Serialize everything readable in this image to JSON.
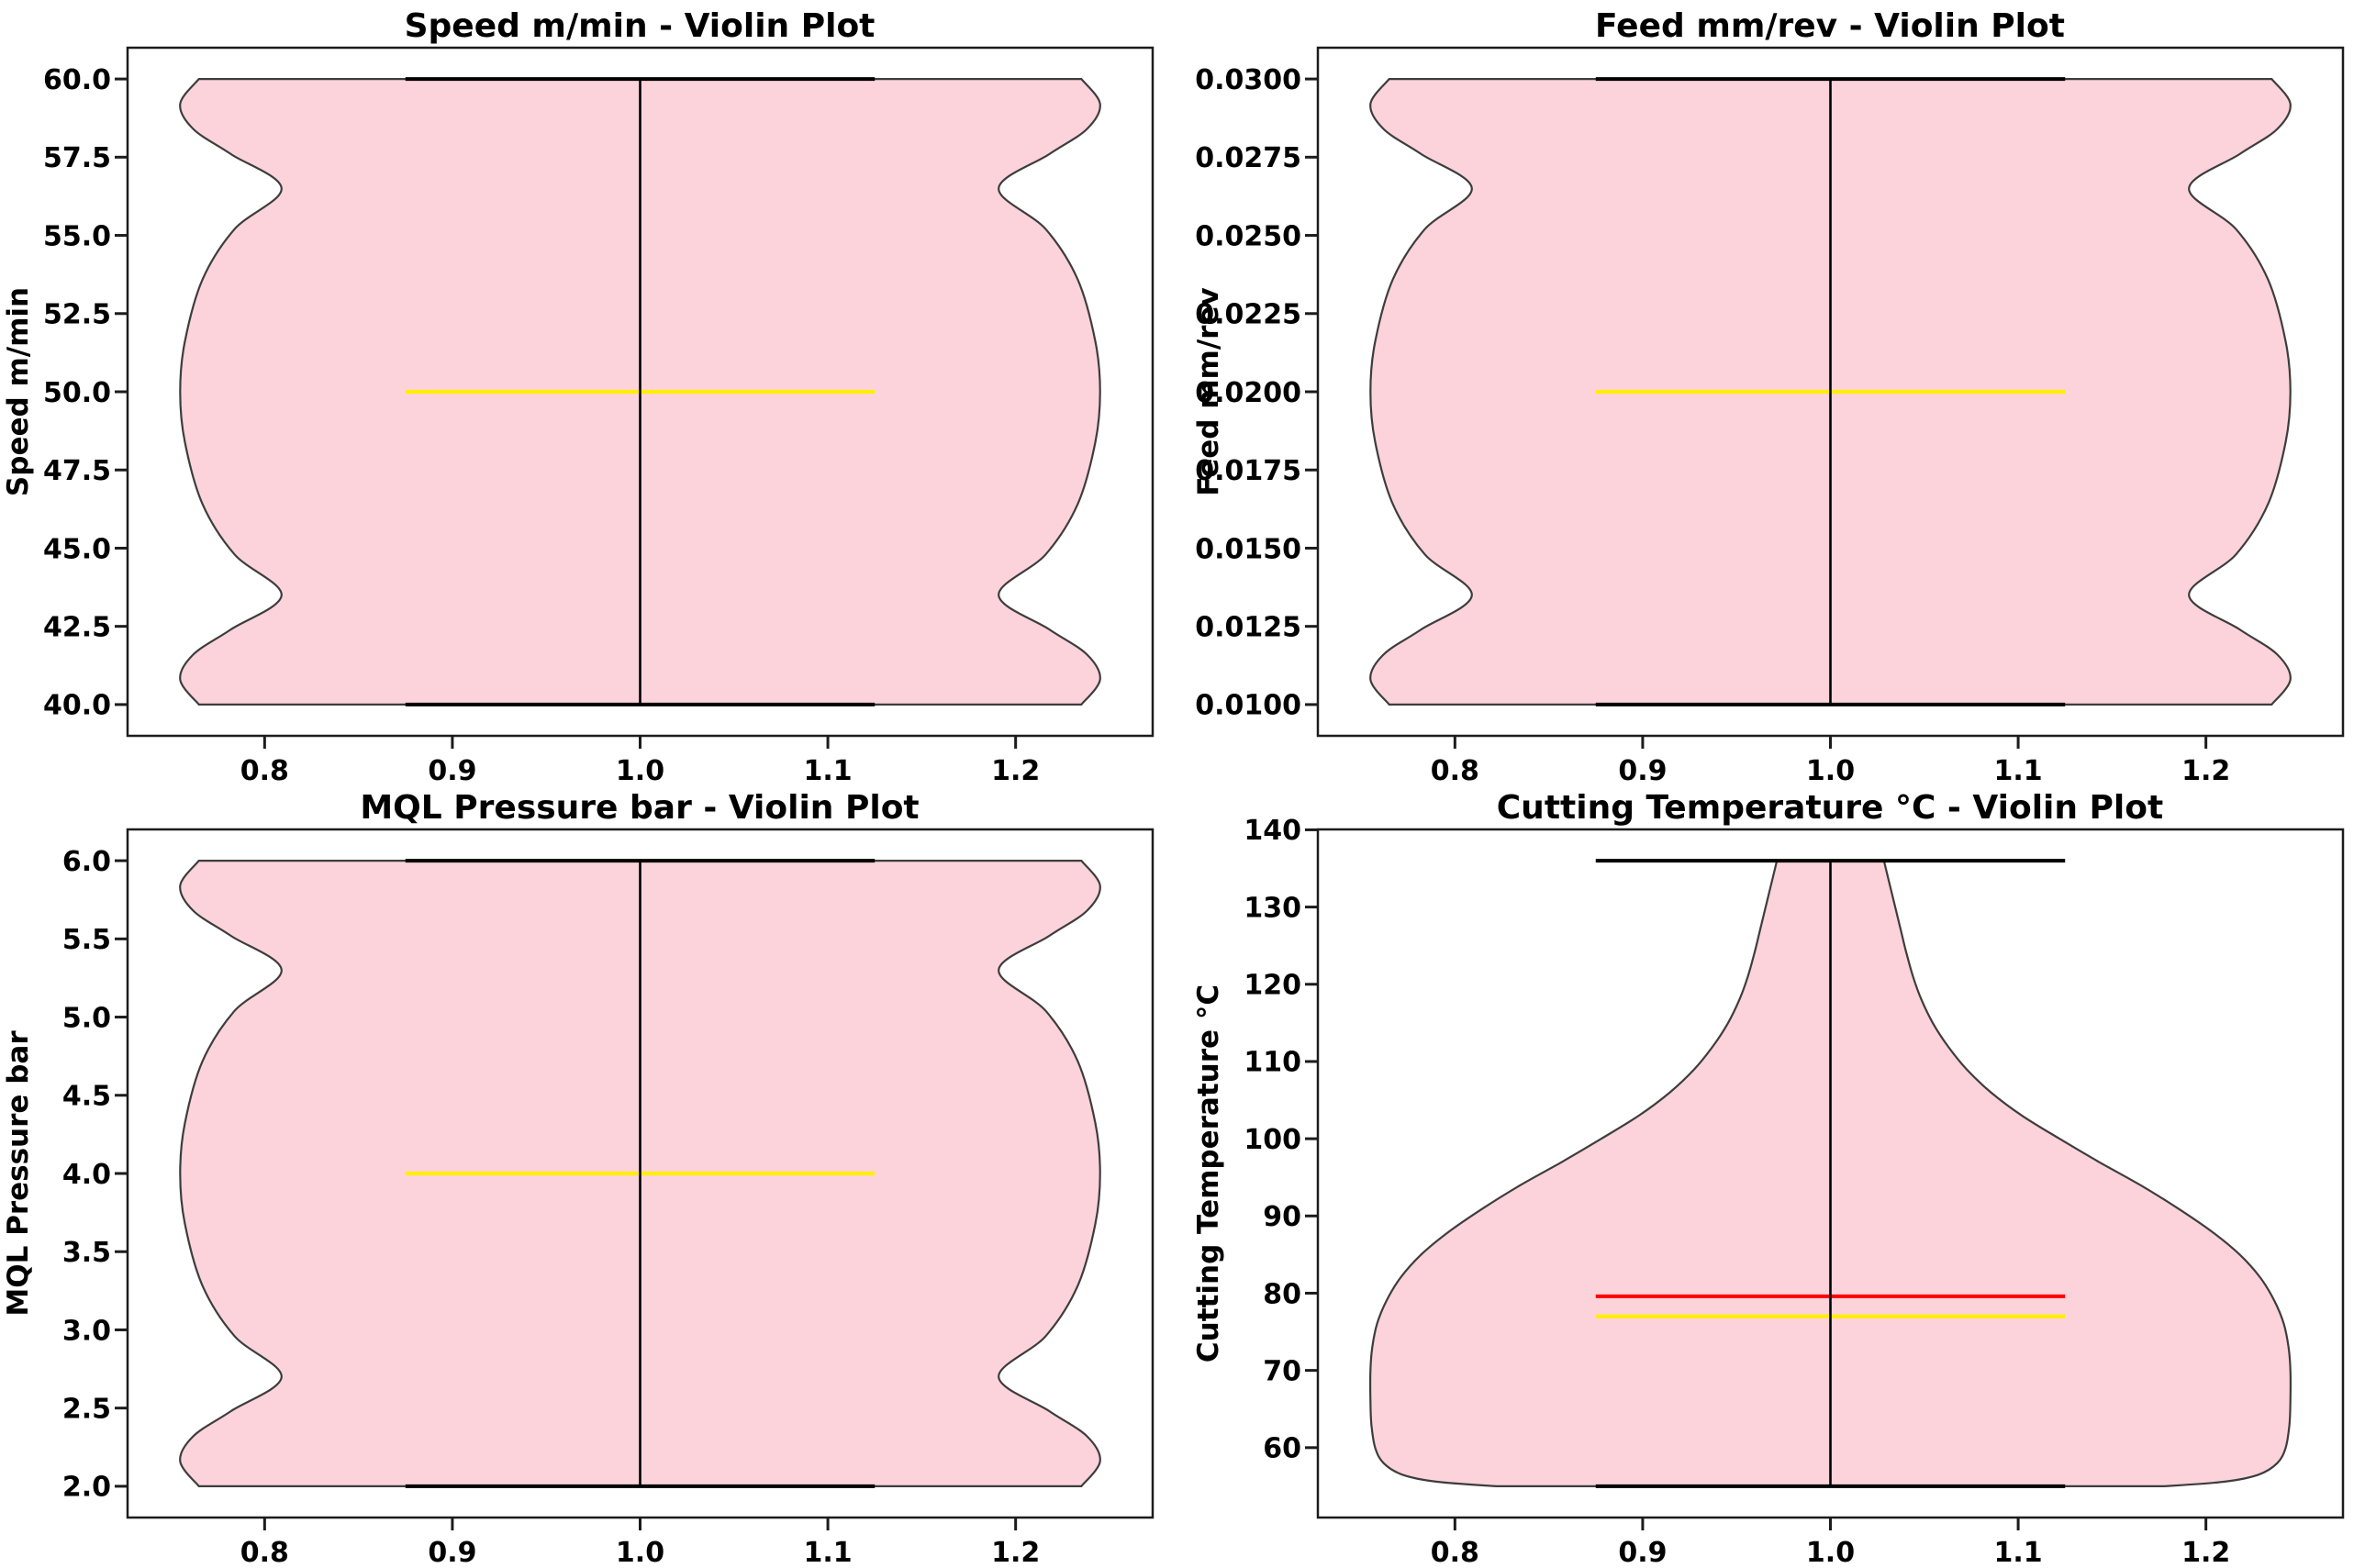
{
  "figure": {
    "background": "#ffffff",
    "style": {
      "violin_fill": "#fdd3db",
      "violin_edge": "#3d3d3d",
      "median_color": "#ffee00",
      "mean_color": "#ff0000",
      "line_color": "#000000",
      "axis_color": "#1c1c1c"
    }
  },
  "chart_data": [
    {
      "type": "violin",
      "title": "Speed m/min - Violin Plot",
      "ylabel": "Speed m/min",
      "xlabel": "",
      "legend": "none",
      "grid": false,
      "center_position": 1.0,
      "xlim": [
        0.727,
        1.273
      ],
      "ylim": [
        39.0,
        61.0
      ],
      "xticks": [
        {
          "v": 0.8,
          "label": "0.8"
        },
        {
          "v": 0.9,
          "label": "0.9"
        },
        {
          "v": 1.0,
          "label": "1.0"
        },
        {
          "v": 1.1,
          "label": "1.1"
        },
        {
          "v": 1.2,
          "label": "1.2"
        }
      ],
      "yticks": [
        {
          "v": 40,
          "label": "40.0"
        },
        {
          "v": 42.5,
          "label": "42.5"
        },
        {
          "v": 45,
          "label": "45.0"
        },
        {
          "v": 47.5,
          "label": "47.5"
        },
        {
          "v": 50,
          "label": "50.0"
        },
        {
          "v": 52.5,
          "label": "52.5"
        },
        {
          "v": 55,
          "label": "55.0"
        },
        {
          "v": 57.5,
          "label": "57.5"
        },
        {
          "v": 60,
          "label": "60.0"
        }
      ],
      "min": 40,
      "max": 60,
      "median": 50,
      "mean": null,
      "modes": [
        40,
        50,
        60
      ],
      "cap_halfwidth": 0.125,
      "profile": [
        [
          40,
          0.235
        ],
        [
          40.8,
          0.245
        ],
        [
          41.6,
          0.238
        ],
        [
          42.4,
          0.218
        ],
        [
          43.5,
          0.191
        ],
        [
          44.8,
          0.216
        ],
        [
          46.4,
          0.233
        ],
        [
          48.4,
          0.2425
        ],
        [
          50,
          0.245
        ],
        [
          51.6,
          0.2425
        ],
        [
          53.6,
          0.233
        ],
        [
          55.2,
          0.216
        ],
        [
          56.5,
          0.191
        ],
        [
          57.6,
          0.218
        ],
        [
          58.4,
          0.238
        ],
        [
          59.2,
          0.245
        ],
        [
          60,
          0.235
        ]
      ]
    },
    {
      "type": "violin",
      "title": "Feed mm/rev - Violin Plot",
      "ylabel": "Feed mm/rev",
      "xlabel": "",
      "legend": "none",
      "grid": false,
      "center_position": 1.0,
      "xlim": [
        0.727,
        1.273
      ],
      "ylim": [
        0.009,
        0.031
      ],
      "xticks": [
        {
          "v": 0.8,
          "label": "0.8"
        },
        {
          "v": 0.9,
          "label": "0.9"
        },
        {
          "v": 1.0,
          "label": "1.0"
        },
        {
          "v": 1.1,
          "label": "1.1"
        },
        {
          "v": 1.2,
          "label": "1.2"
        }
      ],
      "yticks": [
        {
          "v": 0.01,
          "label": "0.0100"
        },
        {
          "v": 0.0125,
          "label": "0.0125"
        },
        {
          "v": 0.015,
          "label": "0.0150"
        },
        {
          "v": 0.0175,
          "label": "0.0175"
        },
        {
          "v": 0.02,
          "label": "0.0200"
        },
        {
          "v": 0.0225,
          "label": "0.0225"
        },
        {
          "v": 0.025,
          "label": "0.0250"
        },
        {
          "v": 0.0275,
          "label": "0.0275"
        },
        {
          "v": 0.03,
          "label": "0.0300"
        }
      ],
      "min": 0.01,
      "max": 0.03,
      "median": 0.02,
      "mean": null,
      "modes": [
        0.01,
        0.02,
        0.03
      ],
      "cap_halfwidth": 0.125,
      "profile": [
        [
          0.01,
          0.235
        ],
        [
          0.0108,
          0.245
        ],
        [
          0.0116,
          0.238
        ],
        [
          0.0124,
          0.218
        ],
        [
          0.0135,
          0.191
        ],
        [
          0.0148,
          0.216
        ],
        [
          0.0164,
          0.233
        ],
        [
          0.0184,
          0.2425
        ],
        [
          0.02,
          0.245
        ],
        [
          0.0216,
          0.2425
        ],
        [
          0.0236,
          0.233
        ],
        [
          0.0252,
          0.216
        ],
        [
          0.0265,
          0.191
        ],
        [
          0.0276,
          0.218
        ],
        [
          0.0284,
          0.238
        ],
        [
          0.0292,
          0.245
        ],
        [
          0.03,
          0.235
        ]
      ]
    },
    {
      "type": "violin",
      "title": "MQL Pressure bar - Violin Plot",
      "ylabel": "MQL Pressure bar",
      "xlabel": "",
      "legend": "none",
      "grid": false,
      "center_position": 1.0,
      "xlim": [
        0.727,
        1.273
      ],
      "ylim": [
        1.8,
        6.2
      ],
      "xticks": [
        {
          "v": 0.8,
          "label": "0.8"
        },
        {
          "v": 0.9,
          "label": "0.9"
        },
        {
          "v": 1.0,
          "label": "1.0"
        },
        {
          "v": 1.1,
          "label": "1.1"
        },
        {
          "v": 1.2,
          "label": "1.2"
        }
      ],
      "yticks": [
        {
          "v": 2,
          "label": "2.0"
        },
        {
          "v": 2.5,
          "label": "2.5"
        },
        {
          "v": 3,
          "label": "3.0"
        },
        {
          "v": 3.5,
          "label": "3.5"
        },
        {
          "v": 4,
          "label": "4.0"
        },
        {
          "v": 4.5,
          "label": "4.5"
        },
        {
          "v": 5,
          "label": "5.0"
        },
        {
          "v": 5.5,
          "label": "5.5"
        },
        {
          "v": 6,
          "label": "6.0"
        }
      ],
      "min": 2,
      "max": 6,
      "median": 4,
      "mean": null,
      "modes": [
        2,
        4,
        6
      ],
      "cap_halfwidth": 0.125,
      "profile": [
        [
          2,
          0.235
        ],
        [
          2.16,
          0.245
        ],
        [
          2.32,
          0.238
        ],
        [
          2.48,
          0.218
        ],
        [
          2.7,
          0.191
        ],
        [
          2.96,
          0.216
        ],
        [
          3.28,
          0.233
        ],
        [
          3.68,
          0.2425
        ],
        [
          4,
          0.245
        ],
        [
          4.32,
          0.2425
        ],
        [
          4.72,
          0.233
        ],
        [
          5.04,
          0.216
        ],
        [
          5.3,
          0.191
        ],
        [
          5.52,
          0.218
        ],
        [
          5.68,
          0.238
        ],
        [
          5.84,
          0.245
        ],
        [
          6,
          0.235
        ]
      ]
    },
    {
      "type": "violin",
      "title": "Cutting Temperature °C - Violin Plot",
      "ylabel": "Cutting Temperature °C",
      "xlabel": "",
      "legend": "none",
      "grid": false,
      "center_position": 1.0,
      "xlim": [
        0.727,
        1.273
      ],
      "ylim": [
        50.95,
        140.05
      ],
      "xticks": [
        {
          "v": 0.8,
          "label": "0.8"
        },
        {
          "v": 0.9,
          "label": "0.9"
        },
        {
          "v": 1.0,
          "label": "1.0"
        },
        {
          "v": 1.1,
          "label": "1.1"
        },
        {
          "v": 1.2,
          "label": "1.2"
        }
      ],
      "yticks": [
        {
          "v": 60,
          "label": "60"
        },
        {
          "v": 70,
          "label": "70"
        },
        {
          "v": 80,
          "label": "80"
        },
        {
          "v": 90,
          "label": "90"
        },
        {
          "v": 100,
          "label": "100"
        },
        {
          "v": 110,
          "label": "110"
        },
        {
          "v": 120,
          "label": "120"
        },
        {
          "v": 130,
          "label": "130"
        },
        {
          "v": 140,
          "label": "140"
        }
      ],
      "min": 55,
      "max": 136,
      "median": 77,
      "mean": 79.6,
      "modes": [
        70
      ],
      "cap_halfwidth": 0.125,
      "profile": [
        [
          55,
          0.178
        ],
        [
          55.6,
          0.21
        ],
        [
          56.5,
          0.228
        ],
        [
          58,
          0.238
        ],
        [
          60,
          0.2425
        ],
        [
          63,
          0.2445
        ],
        [
          66,
          0.245
        ],
        [
          70,
          0.245
        ],
        [
          73,
          0.244
        ],
        [
          76,
          0.2415
        ],
        [
          79,
          0.2365
        ],
        [
          82,
          0.229
        ],
        [
          85,
          0.218
        ],
        [
          88,
          0.203
        ],
        [
          91,
          0.185
        ],
        [
          94,
          0.165
        ],
        [
          97,
          0.143
        ],
        [
          100,
          0.122
        ],
        [
          103,
          0.102
        ],
        [
          106,
          0.0855
        ],
        [
          109,
          0.0725
        ],
        [
          112,
          0.0625
        ],
        [
          115,
          0.0545
        ],
        [
          118,
          0.0485
        ],
        [
          121,
          0.044
        ],
        [
          124,
          0.0405
        ],
        [
          127,
          0.0375
        ],
        [
          130,
          0.0345
        ],
        [
          133,
          0.0315
        ],
        [
          136,
          0.0285
        ]
      ]
    }
  ]
}
